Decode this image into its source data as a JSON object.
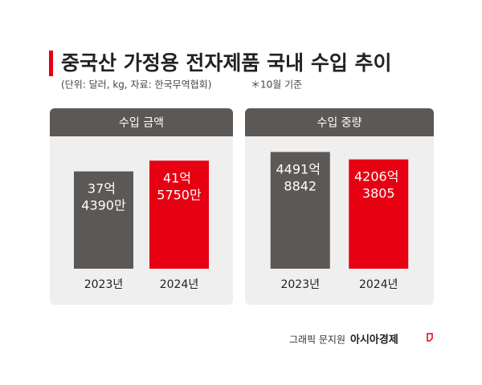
{
  "title": "중국산 가정용 전자제품 국내 수입 추이",
  "subtitle": "(단위: 달러, kg, 자료: 한국무역협회)",
  "note": "＊10월 기준",
  "credit": "그래픽 문지원",
  "source": "아시아경제",
  "chart_data": [
    {
      "type": "bar",
      "title": "수입 금액",
      "categories": [
        "2023년",
        "2024년"
      ],
      "values": [
        3743900000,
        4157500000
      ],
      "value_labels": [
        "37억 4390만",
        "41억 5750만"
      ],
      "colors": [
        "#5c5856",
        "#e60012"
      ],
      "ylim": [
        0,
        5000000000
      ]
    },
    {
      "type": "bar",
      "title": "수입 중량",
      "categories": [
        "2023년",
        "2024년"
      ],
      "values": [
        449100008842,
        420600003805
      ],
      "value_labels": [
        "4491억 8842",
        "4206억 3805"
      ],
      "colors": [
        "#5c5856",
        "#e60012"
      ],
      "ylim": [
        0,
        500000000000
      ]
    }
  ]
}
